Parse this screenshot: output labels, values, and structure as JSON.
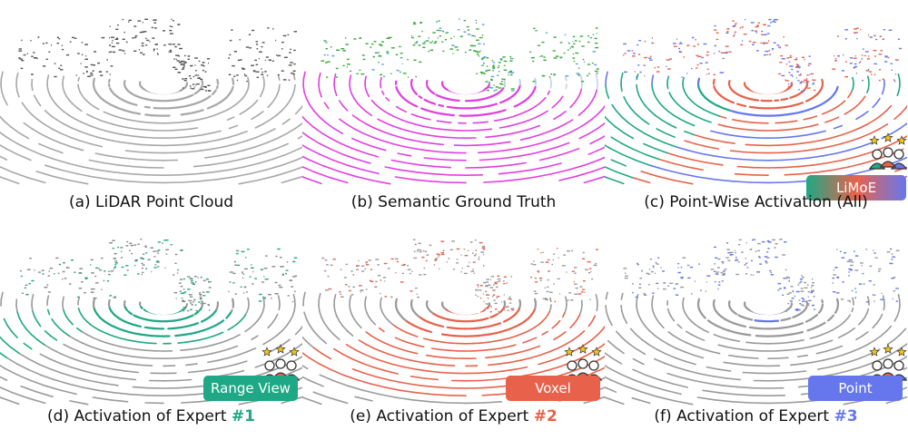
{
  "panels": [
    {
      "id": "a",
      "caption": "(a) LiDAR Point Cloud",
      "scheme": "gray"
    },
    {
      "id": "b",
      "caption": "(b) Semantic Ground Truth",
      "scheme": "semantic"
    },
    {
      "id": "c",
      "caption": "(c) Point-Wise Activation (All)",
      "scheme": "all",
      "badge": "LiMoE"
    },
    {
      "id": "d",
      "caption_prefix": "(d) Activation of Expert ",
      "expert_num": "#1",
      "scheme": "range",
      "badge": "Range View"
    },
    {
      "id": "e",
      "caption_prefix": "(e) Activation of Expert ",
      "expert_num": "#2",
      "scheme": "voxel",
      "badge": "Voxel"
    },
    {
      "id": "f",
      "caption_prefix": "(f) Activation of Expert ",
      "expert_num": "#3",
      "scheme": "point",
      "badge": "Point"
    }
  ],
  "colors": {
    "range_view": "#1fa885",
    "voxel": "#e8624b",
    "point": "#6677ee",
    "ground_truth_road": "#e040e0",
    "ground_truth_vegetation": "#3aaa3a",
    "points_gray": "#9a9a9a",
    "star": "#f5c518"
  },
  "icons": {
    "experts": "three-experts-with-stars-icon"
  }
}
